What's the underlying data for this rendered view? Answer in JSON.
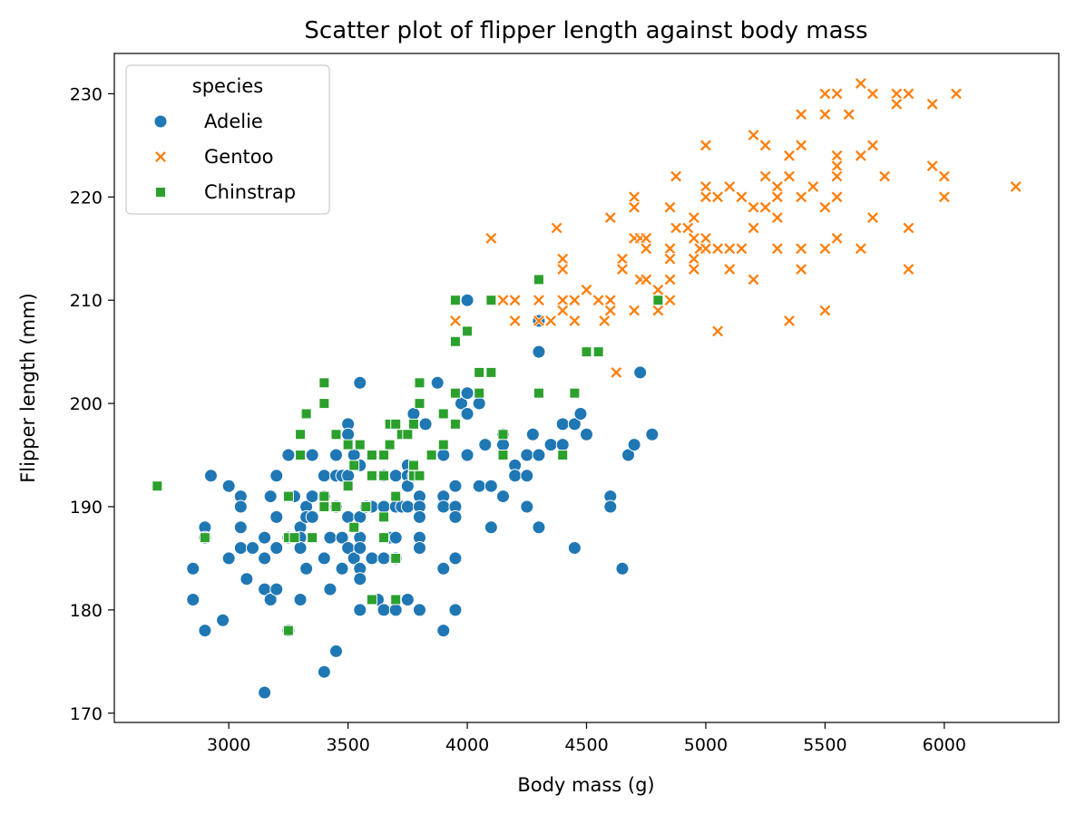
{
  "chart_data": {
    "type": "scatter",
    "title": "Scatter plot of flipper length against body mass",
    "xlabel": "Body mass (g)",
    "ylabel": "Flipper length (mm)",
    "xlim": [
      2520,
      6480
    ],
    "ylim": [
      169.1,
      233.9
    ],
    "xticks": [
      3000,
      3500,
      4000,
      4500,
      5000,
      5500,
      6000
    ],
    "yticks": [
      170,
      180,
      190,
      200,
      210,
      220,
      230
    ],
    "grid": false,
    "legend": {
      "title": "species",
      "position": "top-left"
    },
    "series": [
      {
        "name": "Adelie",
        "marker": "circle",
        "color": "#1f77b4",
        "points": [
          [
            2850,
            184
          ],
          [
            2850,
            181
          ],
          [
            2900,
            188
          ],
          [
            2900,
            187
          ],
          [
            2900,
            178
          ],
          [
            2925,
            193
          ],
          [
            2975,
            179
          ],
          [
            3000,
            192
          ],
          [
            3000,
            185
          ],
          [
            3050,
            191
          ],
          [
            3050,
            190
          ],
          [
            3050,
            188
          ],
          [
            3050,
            186
          ],
          [
            3075,
            183
          ],
          [
            3100,
            186
          ],
          [
            3150,
            172
          ],
          [
            3150,
            182
          ],
          [
            3150,
            185
          ],
          [
            3150,
            187
          ],
          [
            3175,
            191
          ],
          [
            3175,
            181
          ],
          [
            3200,
            193
          ],
          [
            3200,
            189
          ],
          [
            3200,
            186
          ],
          [
            3200,
            182
          ],
          [
            3250,
            195
          ],
          [
            3250,
            187
          ],
          [
            3250,
            178
          ],
          [
            3275,
            191
          ],
          [
            3300,
            188
          ],
          [
            3300,
            187
          ],
          [
            3300,
            186
          ],
          [
            3300,
            181
          ],
          [
            3325,
            190
          ],
          [
            3325,
            189
          ],
          [
            3325,
            184
          ],
          [
            3350,
            195
          ],
          [
            3350,
            191
          ],
          [
            3350,
            189
          ],
          [
            3400,
            193
          ],
          [
            3400,
            191
          ],
          [
            3400,
            185
          ],
          [
            3400,
            174
          ],
          [
            3425,
            187
          ],
          [
            3425,
            182
          ],
          [
            3450,
            195
          ],
          [
            3450,
            193
          ],
          [
            3450,
            190
          ],
          [
            3450,
            176
          ],
          [
            3475,
            193
          ],
          [
            3475,
            187
          ],
          [
            3475,
            184
          ],
          [
            3500,
            198
          ],
          [
            3500,
            197
          ],
          [
            3500,
            193
          ],
          [
            3500,
            189
          ],
          [
            3500,
            186
          ],
          [
            3525,
            195
          ],
          [
            3525,
            185
          ],
          [
            3550,
            202
          ],
          [
            3550,
            194
          ],
          [
            3550,
            189
          ],
          [
            3550,
            187
          ],
          [
            3550,
            186
          ],
          [
            3550,
            184
          ],
          [
            3550,
            183
          ],
          [
            3550,
            180
          ],
          [
            3575,
            190
          ],
          [
            3600,
            190
          ],
          [
            3600,
            185
          ],
          [
            3625,
            181
          ],
          [
            3650,
            193
          ],
          [
            3650,
            190
          ],
          [
            3650,
            185
          ],
          [
            3650,
            180
          ],
          [
            3675,
            187
          ],
          [
            3700,
            193
          ],
          [
            3700,
            190
          ],
          [
            3700,
            187
          ],
          [
            3700,
            185
          ],
          [
            3700,
            180
          ],
          [
            3725,
            190
          ],
          [
            3750,
            194
          ],
          [
            3750,
            193
          ],
          [
            3750,
            192
          ],
          [
            3750,
            190
          ],
          [
            3750,
            181
          ],
          [
            3775,
            199
          ],
          [
            3775,
            193
          ],
          [
            3800,
            191
          ],
          [
            3800,
            190
          ],
          [
            3800,
            189
          ],
          [
            3800,
            187
          ],
          [
            3800,
            186
          ],
          [
            3800,
            180
          ],
          [
            3825,
            198
          ],
          [
            3875,
            202
          ],
          [
            3900,
            195
          ],
          [
            3900,
            191
          ],
          [
            3900,
            190
          ],
          [
            3900,
            184
          ],
          [
            3900,
            178
          ],
          [
            3950,
            192
          ],
          [
            3950,
            190
          ],
          [
            3950,
            189
          ],
          [
            3950,
            185
          ],
          [
            3950,
            180
          ],
          [
            3975,
            200
          ],
          [
            4000,
            210
          ],
          [
            4000,
            201
          ],
          [
            4000,
            199
          ],
          [
            4000,
            195
          ],
          [
            4050,
            200
          ],
          [
            4050,
            192
          ],
          [
            4075,
            196
          ],
          [
            4100,
            192
          ],
          [
            4100,
            188
          ],
          [
            4150,
            197
          ],
          [
            4150,
            196
          ],
          [
            4150,
            191
          ],
          [
            4200,
            194
          ],
          [
            4200,
            193
          ],
          [
            4250,
            195
          ],
          [
            4250,
            193
          ],
          [
            4250,
            190
          ],
          [
            4275,
            197
          ],
          [
            4300,
            208
          ],
          [
            4300,
            205
          ],
          [
            4300,
            195
          ],
          [
            4300,
            188
          ],
          [
            4350,
            196
          ],
          [
            4400,
            198
          ],
          [
            4400,
            196
          ],
          [
            4450,
            198
          ],
          [
            4450,
            186
          ],
          [
            4475,
            199
          ],
          [
            4500,
            197
          ],
          [
            4600,
            191
          ],
          [
            4600,
            190
          ],
          [
            4650,
            184
          ],
          [
            4675,
            195
          ],
          [
            4700,
            196
          ],
          [
            4725,
            203
          ],
          [
            4775,
            197
          ]
        ]
      },
      {
        "name": "Gentoo",
        "marker": "x",
        "color": "#ff7f0e",
        "points": [
          [
            3950,
            210
          ],
          [
            3950,
            208
          ],
          [
            4100,
            216
          ],
          [
            4150,
            210
          ],
          [
            4200,
            210
          ],
          [
            4200,
            208
          ],
          [
            4300,
            210
          ],
          [
            4300,
            208
          ],
          [
            4350,
            208
          ],
          [
            4375,
            217
          ],
          [
            4400,
            214
          ],
          [
            4400,
            213
          ],
          [
            4400,
            210
          ],
          [
            4400,
            209
          ],
          [
            4450,
            210
          ],
          [
            4450,
            208
          ],
          [
            4500,
            211
          ],
          [
            4550,
            210
          ],
          [
            4575,
            208
          ],
          [
            4600,
            218
          ],
          [
            4600,
            210
          ],
          [
            4600,
            209
          ],
          [
            4625,
            203
          ],
          [
            4650,
            214
          ],
          [
            4650,
            213
          ],
          [
            4700,
            220
          ],
          [
            4700,
            219
          ],
          [
            4700,
            216
          ],
          [
            4700,
            209
          ],
          [
            4725,
            216
          ],
          [
            4725,
            212
          ],
          [
            4750,
            216
          ],
          [
            4750,
            215
          ],
          [
            4750,
            212
          ],
          [
            4800,
            211
          ],
          [
            4800,
            209
          ],
          [
            4850,
            219
          ],
          [
            4850,
            215
          ],
          [
            4850,
            214
          ],
          [
            4850,
            212
          ],
          [
            4850,
            210
          ],
          [
            4875,
            222
          ],
          [
            4875,
            217
          ],
          [
            4925,
            217
          ],
          [
            4950,
            218
          ],
          [
            4950,
            216
          ],
          [
            4950,
            214
          ],
          [
            4950,
            213
          ],
          [
            4975,
            215
          ],
          [
            5000,
            225
          ],
          [
            5000,
            221
          ],
          [
            5000,
            220
          ],
          [
            5000,
            216
          ],
          [
            5000,
            215
          ],
          [
            5050,
            220
          ],
          [
            5050,
            215
          ],
          [
            5050,
            207
          ],
          [
            5100,
            221
          ],
          [
            5100,
            215
          ],
          [
            5100,
            213
          ],
          [
            5150,
            220
          ],
          [
            5150,
            215
          ],
          [
            5200,
            226
          ],
          [
            5200,
            219
          ],
          [
            5200,
            217
          ],
          [
            5200,
            212
          ],
          [
            5250,
            225
          ],
          [
            5250,
            222
          ],
          [
            5250,
            219
          ],
          [
            5300,
            221
          ],
          [
            5300,
            220
          ],
          [
            5300,
            218
          ],
          [
            5300,
            215
          ],
          [
            5350,
            224
          ],
          [
            5350,
            222
          ],
          [
            5350,
            208
          ],
          [
            5400,
            228
          ],
          [
            5400,
            225
          ],
          [
            5400,
            220
          ],
          [
            5400,
            215
          ],
          [
            5400,
            213
          ],
          [
            5450,
            221
          ],
          [
            5500,
            230
          ],
          [
            5500,
            228
          ],
          [
            5500,
            219
          ],
          [
            5500,
            215
          ],
          [
            5500,
            209
          ],
          [
            5550,
            230
          ],
          [
            5550,
            224
          ],
          [
            5550,
            223
          ],
          [
            5550,
            222
          ],
          [
            5550,
            220
          ],
          [
            5550,
            216
          ],
          [
            5600,
            228
          ],
          [
            5650,
            231
          ],
          [
            5650,
            224
          ],
          [
            5650,
            215
          ],
          [
            5700,
            230
          ],
          [
            5700,
            225
          ],
          [
            5700,
            218
          ],
          [
            5750,
            222
          ],
          [
            5800,
            230
          ],
          [
            5800,
            229
          ],
          [
            5850,
            230
          ],
          [
            5850,
            217
          ],
          [
            5850,
            213
          ],
          [
            5950,
            229
          ],
          [
            5950,
            223
          ],
          [
            6000,
            222
          ],
          [
            6000,
            220
          ],
          [
            6050,
            230
          ],
          [
            6300,
            221
          ]
        ]
      },
      {
        "name": "Chinstrap",
        "marker": "square",
        "color": "#2ca02c",
        "points": [
          [
            2700,
            192
          ],
          [
            2900,
            187
          ],
          [
            3250,
            191
          ],
          [
            3250,
            187
          ],
          [
            3250,
            178
          ],
          [
            3275,
            187
          ],
          [
            3300,
            197
          ],
          [
            3300,
            195
          ],
          [
            3325,
            199
          ],
          [
            3350,
            187
          ],
          [
            3400,
            202
          ],
          [
            3400,
            200
          ],
          [
            3400,
            191
          ],
          [
            3400,
            190
          ],
          [
            3450,
            197
          ],
          [
            3450,
            190
          ],
          [
            3500,
            196
          ],
          [
            3500,
            192
          ],
          [
            3525,
            194
          ],
          [
            3525,
            188
          ],
          [
            3550,
            196
          ],
          [
            3575,
            190
          ],
          [
            3600,
            195
          ],
          [
            3600,
            193
          ],
          [
            3600,
            181
          ],
          [
            3650,
            195
          ],
          [
            3650,
            193
          ],
          [
            3650,
            189
          ],
          [
            3650,
            187
          ],
          [
            3675,
            198
          ],
          [
            3675,
            196
          ],
          [
            3700,
            198
          ],
          [
            3700,
            191
          ],
          [
            3700,
            185
          ],
          [
            3700,
            181
          ],
          [
            3725,
            197
          ],
          [
            3750,
            197
          ],
          [
            3775,
            198
          ],
          [
            3775,
            194
          ],
          [
            3775,
            193
          ],
          [
            3800,
            202
          ],
          [
            3800,
            200
          ],
          [
            3800,
            193
          ],
          [
            3850,
            195
          ],
          [
            3900,
            199
          ],
          [
            3900,
            196
          ],
          [
            3950,
            210
          ],
          [
            3950,
            206
          ],
          [
            3950,
            201
          ],
          [
            3950,
            198
          ],
          [
            4000,
            207
          ],
          [
            4050,
            203
          ],
          [
            4050,
            201
          ],
          [
            4100,
            210
          ],
          [
            4100,
            203
          ],
          [
            4150,
            197
          ],
          [
            4150,
            195
          ],
          [
            4300,
            212
          ],
          [
            4300,
            201
          ],
          [
            4400,
            195
          ],
          [
            4450,
            201
          ],
          [
            4500,
            205
          ],
          [
            4550,
            205
          ],
          [
            4800,
            210
          ]
        ]
      }
    ]
  }
}
